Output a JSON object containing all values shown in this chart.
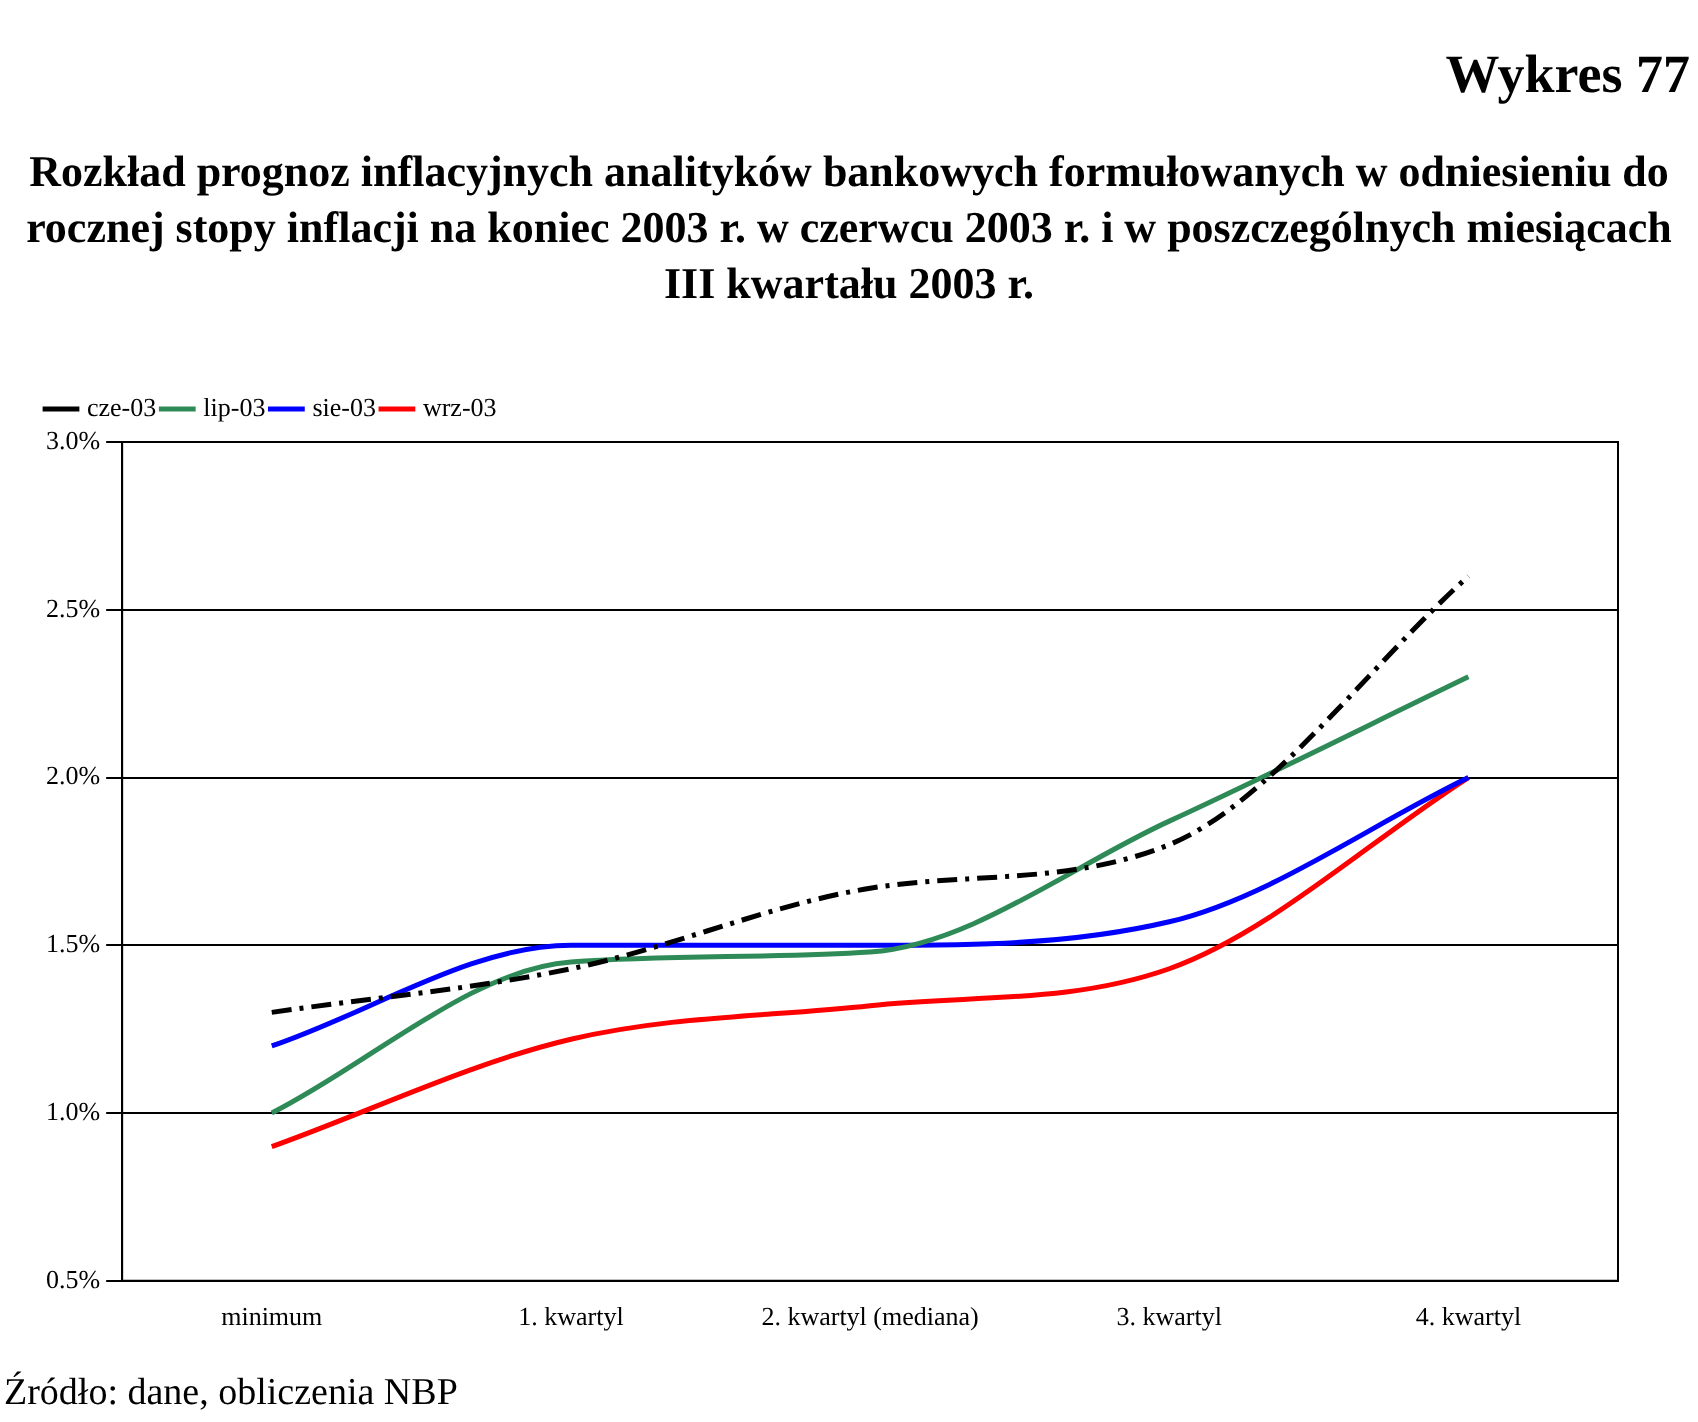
{
  "chart_data": {
    "type": "line",
    "title": "Wykres 77",
    "subtitle": "Rozkład prognoz inflacyjnych analityków bankowych formułowanych w odniesieniu do rocznej stopy inflacji na koniec 2003 r. w czerwcu 2003 r. i w poszczególnych miesiącach III kwartału 2003 r.",
    "categories": [
      "minimum",
      "1. kwartyl",
      "2. kwartyl (mediana)",
      "3. kwartyl",
      "4. kwartyl"
    ],
    "series": [
      {
        "name": "cze-03",
        "color": "#000000",
        "line_style": "dashed",
        "values": [
          1.3,
          1.43,
          1.67,
          1.8,
          2.6
        ]
      },
      {
        "name": "lip-03",
        "color": "#2e8b57",
        "line_style": "solid",
        "values": [
          1.0,
          1.45,
          1.48,
          1.87,
          2.3
        ]
      },
      {
        "name": "sie-03",
        "color": "#0000ff",
        "line_style": "solid",
        "values": [
          1.2,
          1.5,
          1.5,
          1.57,
          2.0
        ]
      },
      {
        "name": "wrz-03",
        "color": "#ff0000",
        "line_style": "solid",
        "values": [
          0.9,
          1.22,
          1.32,
          1.43,
          2.0
        ]
      }
    ],
    "ylim": [
      0.5,
      3.0
    ],
    "yticks": [
      {
        "value": 0.5,
        "label": "0.5%"
      },
      {
        "value": 1.0,
        "label": "1.0%"
      },
      {
        "value": 1.5,
        "label": "1.5%"
      },
      {
        "value": 2.0,
        "label": "2.0%"
      },
      {
        "value": 2.5,
        "label": "2.5%"
      },
      {
        "value": 3.0,
        "label": "3.0%"
      }
    ],
    "grid": "y",
    "legend": "top left",
    "marker": "none",
    "annotations": [
      "Źródło: dane, obliczenia NBP"
    ]
  }
}
